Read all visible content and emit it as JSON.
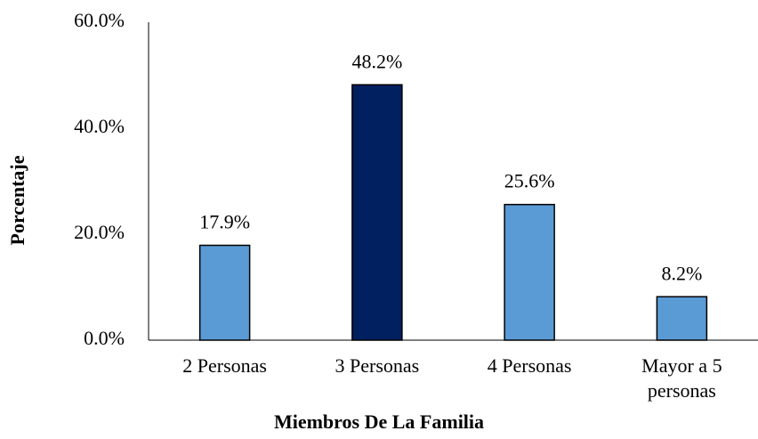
{
  "chart_data": {
    "type": "bar",
    "x_label": "Miembros De La Familia",
    "y_label": "Porcentaje",
    "categories": [
      "2 Personas",
      "3 Personas",
      "4 Personas",
      "Mayor a 5 personas"
    ],
    "values": [
      17.9,
      48.2,
      25.6,
      8.2
    ],
    "value_labels": [
      "17.9%",
      "48.2%",
      "25.6%",
      "8.2%"
    ],
    "colors": [
      "#5b9bd5",
      "#002060",
      "#5b9bd5",
      "#5b9bd5"
    ],
    "ylim": [
      0,
      60
    ],
    "yticks": [
      {
        "value": 0,
        "label": "0.0%"
      },
      {
        "value": 20,
        "label": "20.0%"
      },
      {
        "value": 40,
        "label": "40.0%"
      },
      {
        "value": 60,
        "label": "60.0%"
      }
    ],
    "grid": false
  }
}
